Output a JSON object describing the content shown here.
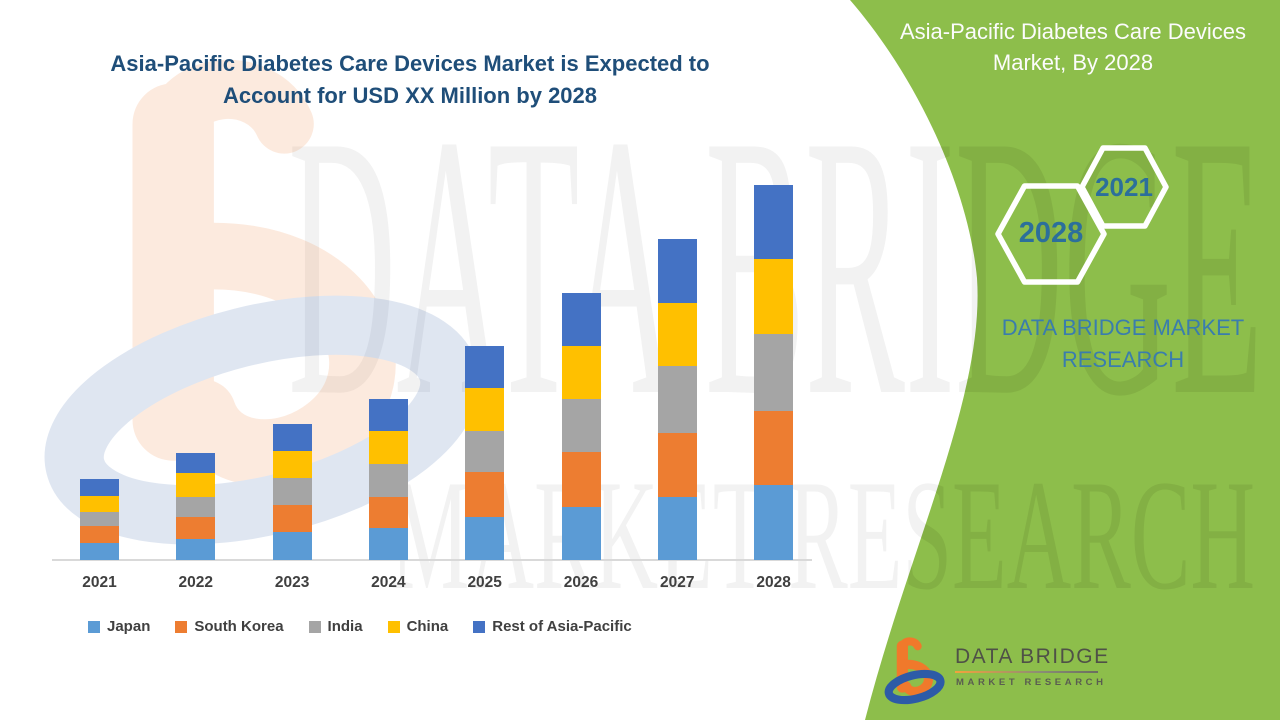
{
  "main_title": "Asia-Pacific Diabetes Care Devices Market is Expected to Account for USD XX Million by 2028",
  "panel": {
    "title": "Asia-Pacific Diabetes Care Devices Market, By 2028",
    "hexagons": [
      {
        "label": "2021"
      },
      {
        "label": "2028"
      }
    ],
    "brand_text": "DATA BRIDGE MARKET RESEARCH",
    "background_color": "#8DBE4B",
    "title_color": "#FCFCFC",
    "year_text_color": "#2C6F9B",
    "brand_text_color": "#3A7DAD"
  },
  "watermark": {
    "line1": "DATA BRIDGE",
    "line2": "MARKET RESEARCH"
  },
  "logo": {
    "name": "DATA BRIDGE",
    "sub": "MARKET RESEARCH"
  },
  "title_color": "#1F4E79",
  "chart_data": {
    "type": "bar",
    "stacked": true,
    "title": "Asia-Pacific Diabetes Care Devices Market is Expected to Account for USD XX Million by 2028",
    "xlabel": "",
    "ylabel": "",
    "units": "relative units (no y-axis values shown in figure)",
    "legend_position": "bottom",
    "grid": false,
    "categories": [
      "2021",
      "2022",
      "2023",
      "2024",
      "2025",
      "2026",
      "2027",
      "2028"
    ],
    "series": [
      {
        "name": "Japan",
        "color": "#5B9BD5",
        "values": [
          17,
          21,
          28,
          32,
          43,
          53,
          63,
          75
        ]
      },
      {
        "name": "South Korea",
        "color": "#ED7D31",
        "values": [
          17,
          22,
          27,
          31,
          45,
          55,
          64,
          74
        ]
      },
      {
        "name": "India",
        "color": "#A5A5A5",
        "values": [
          14,
          20,
          27,
          33,
          41,
          53,
          67,
          77
        ]
      },
      {
        "name": "China",
        "color": "#FFC000",
        "values": [
          16,
          24,
          27,
          33,
          43,
          53,
          63,
          75
        ]
      },
      {
        "name": "Rest of Asia-Pacific",
        "color": "#4472C4",
        "values": [
          17,
          20,
          27,
          32,
          42,
          53,
          64,
          74
        ]
      }
    ],
    "totals": [
      81,
      107,
      136,
      161,
      214,
      267,
      321,
      375
    ]
  }
}
